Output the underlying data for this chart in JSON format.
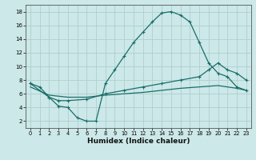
{
  "xlabel": "Humidex (Indice chaleur)",
  "background_color": "#cce8e8",
  "grid_color": "#b0cece",
  "line_color": "#1a6e6a",
  "xlim": [
    -0.5,
    23.5
  ],
  "ylim": [
    1.0,
    19.0
  ],
  "yticks": [
    2,
    4,
    6,
    8,
    10,
    12,
    14,
    16,
    18
  ],
  "xticks": [
    0,
    1,
    2,
    3,
    4,
    5,
    6,
    7,
    8,
    9,
    10,
    11,
    12,
    13,
    14,
    15,
    16,
    17,
    18,
    19,
    20,
    21,
    22,
    23
  ],
  "curve1_x": [
    0,
    1,
    2,
    3,
    4,
    5,
    6,
    7,
    8,
    9,
    10,
    11,
    12,
    13,
    14,
    15,
    16,
    17,
    18,
    19,
    20,
    21,
    22,
    23
  ],
  "curve1_y": [
    7.5,
    7.0,
    5.5,
    4.2,
    4.0,
    2.5,
    2.0,
    2.0,
    7.5,
    9.5,
    11.5,
    13.5,
    15.0,
    16.5,
    17.8,
    18.0,
    17.5,
    16.5,
    13.5,
    10.5,
    9.0,
    8.5,
    7.0,
    6.5
  ],
  "curve2_x": [
    0,
    2,
    3,
    4,
    6,
    8,
    10,
    12,
    14,
    16,
    18,
    19,
    20,
    21,
    22,
    23
  ],
  "curve2_y": [
    7.5,
    5.5,
    5.0,
    5.0,
    5.2,
    6.0,
    6.5,
    7.0,
    7.5,
    8.0,
    8.5,
    9.5,
    10.5,
    9.5,
    9.0,
    8.0
  ],
  "curve3_x": [
    0,
    2,
    4,
    6,
    8,
    10,
    12,
    14,
    16,
    18,
    20,
    22,
    23
  ],
  "curve3_y": [
    7.0,
    5.8,
    5.5,
    5.5,
    5.8,
    6.0,
    6.2,
    6.5,
    6.8,
    7.0,
    7.2,
    6.8,
    6.5
  ]
}
